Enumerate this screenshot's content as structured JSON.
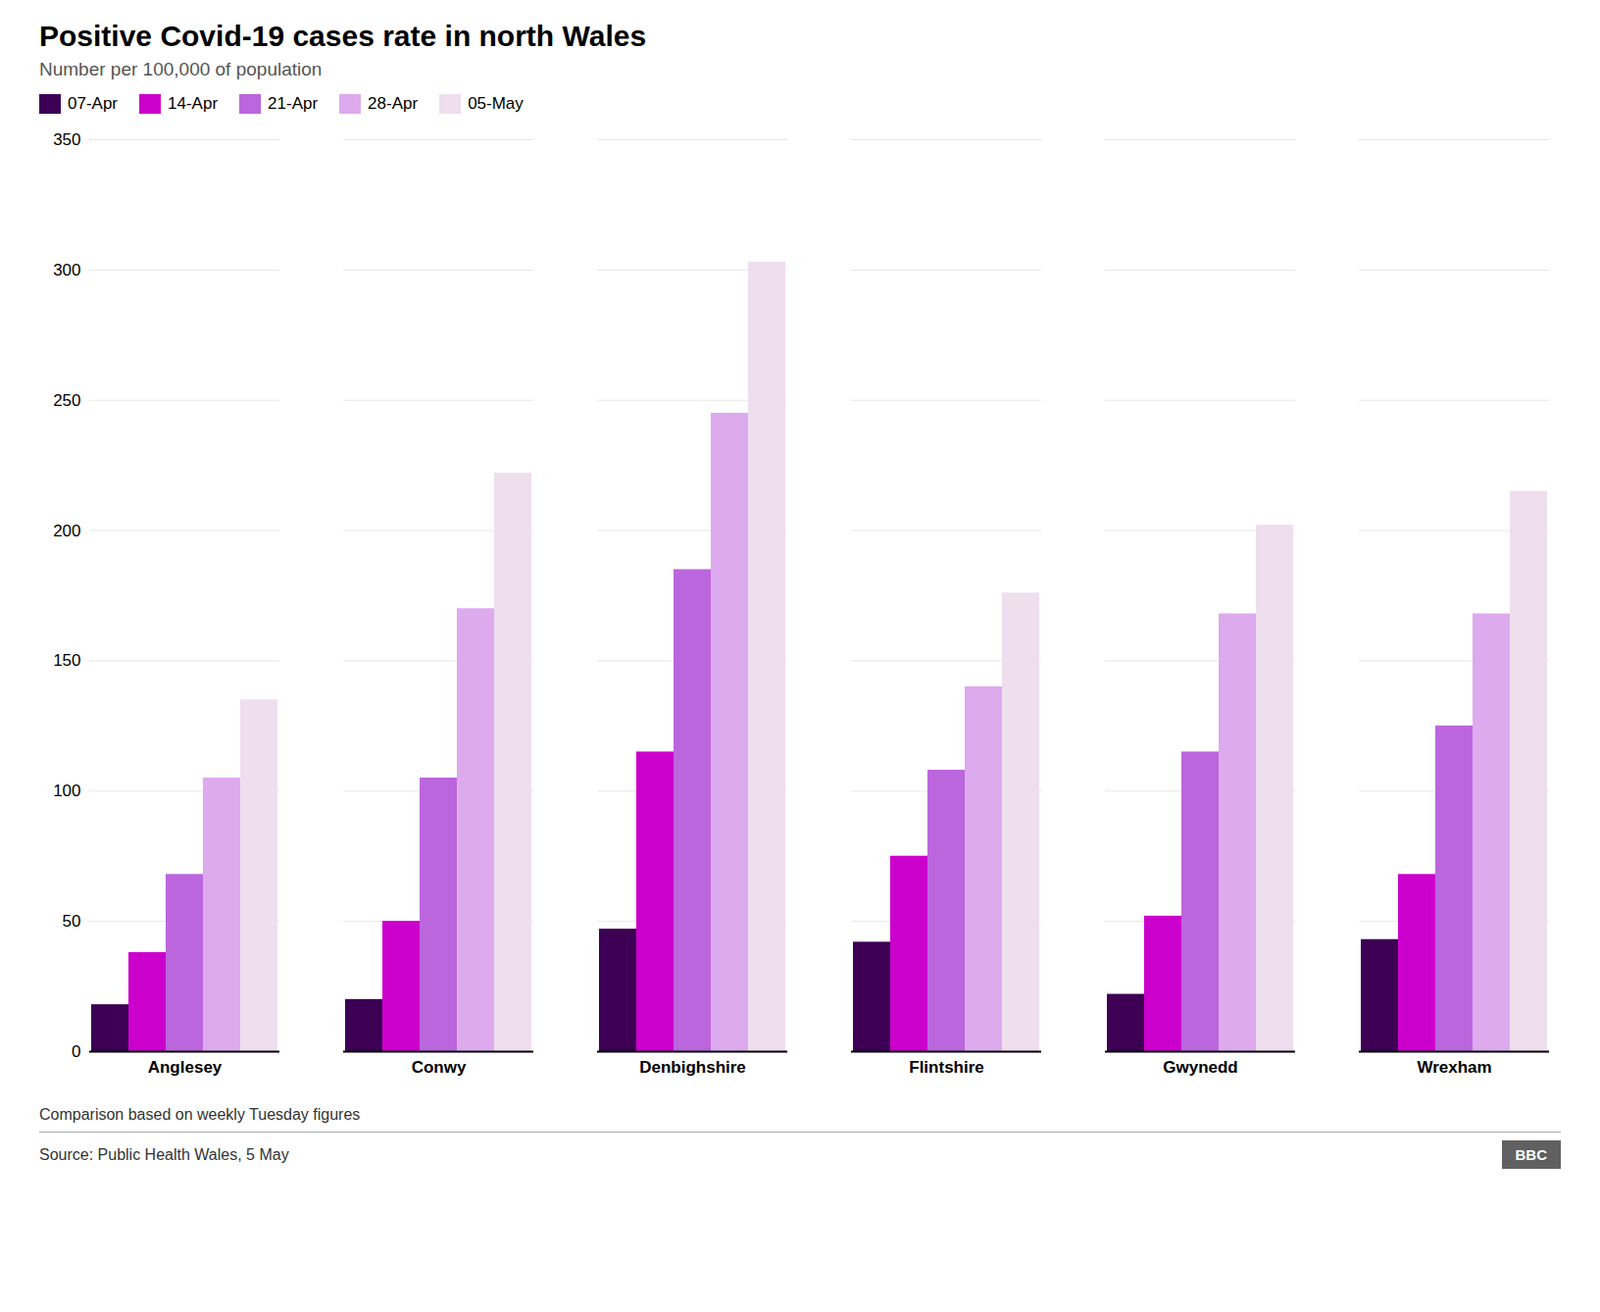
{
  "chart_data": {
    "type": "bar",
    "title": "Positive Covid-19 cases rate in north Wales",
    "subtitle": "Number per 100,000 of population",
    "footer_note": "Comparison based on weekly Tuesday figures",
    "source": "Source: Public Health Wales, 5 May",
    "logo": "BBC",
    "categories": [
      "Anglesey",
      "Conwy",
      "Denbighshire",
      "Flintshire",
      "Gwynedd",
      "Wrexham"
    ],
    "series": [
      {
        "name": "07-Apr",
        "color": "#3d0054",
        "values": [
          18,
          20,
          47,
          42,
          22,
          43
        ]
      },
      {
        "name": "14-Apr",
        "color": "#cc00cc",
        "values": [
          38,
          50,
          115,
          75,
          52,
          68
        ]
      },
      {
        "name": "21-Apr",
        "color": "#bb66dd",
        "values": [
          68,
          105,
          185,
          108,
          115,
          125
        ]
      },
      {
        "name": "28-Apr",
        "color": "#ddaaee",
        "values": [
          105,
          170,
          245,
          140,
          168,
          168
        ]
      },
      {
        "name": "05-May",
        "color": "#eedeee",
        "values": [
          135,
          222,
          303,
          176,
          202,
          215
        ]
      }
    ],
    "ylim": [
      0,
      350
    ],
    "yticks": [
      0,
      50,
      100,
      150,
      200,
      250,
      300,
      350
    ],
    "grid": true,
    "legend": "top"
  }
}
